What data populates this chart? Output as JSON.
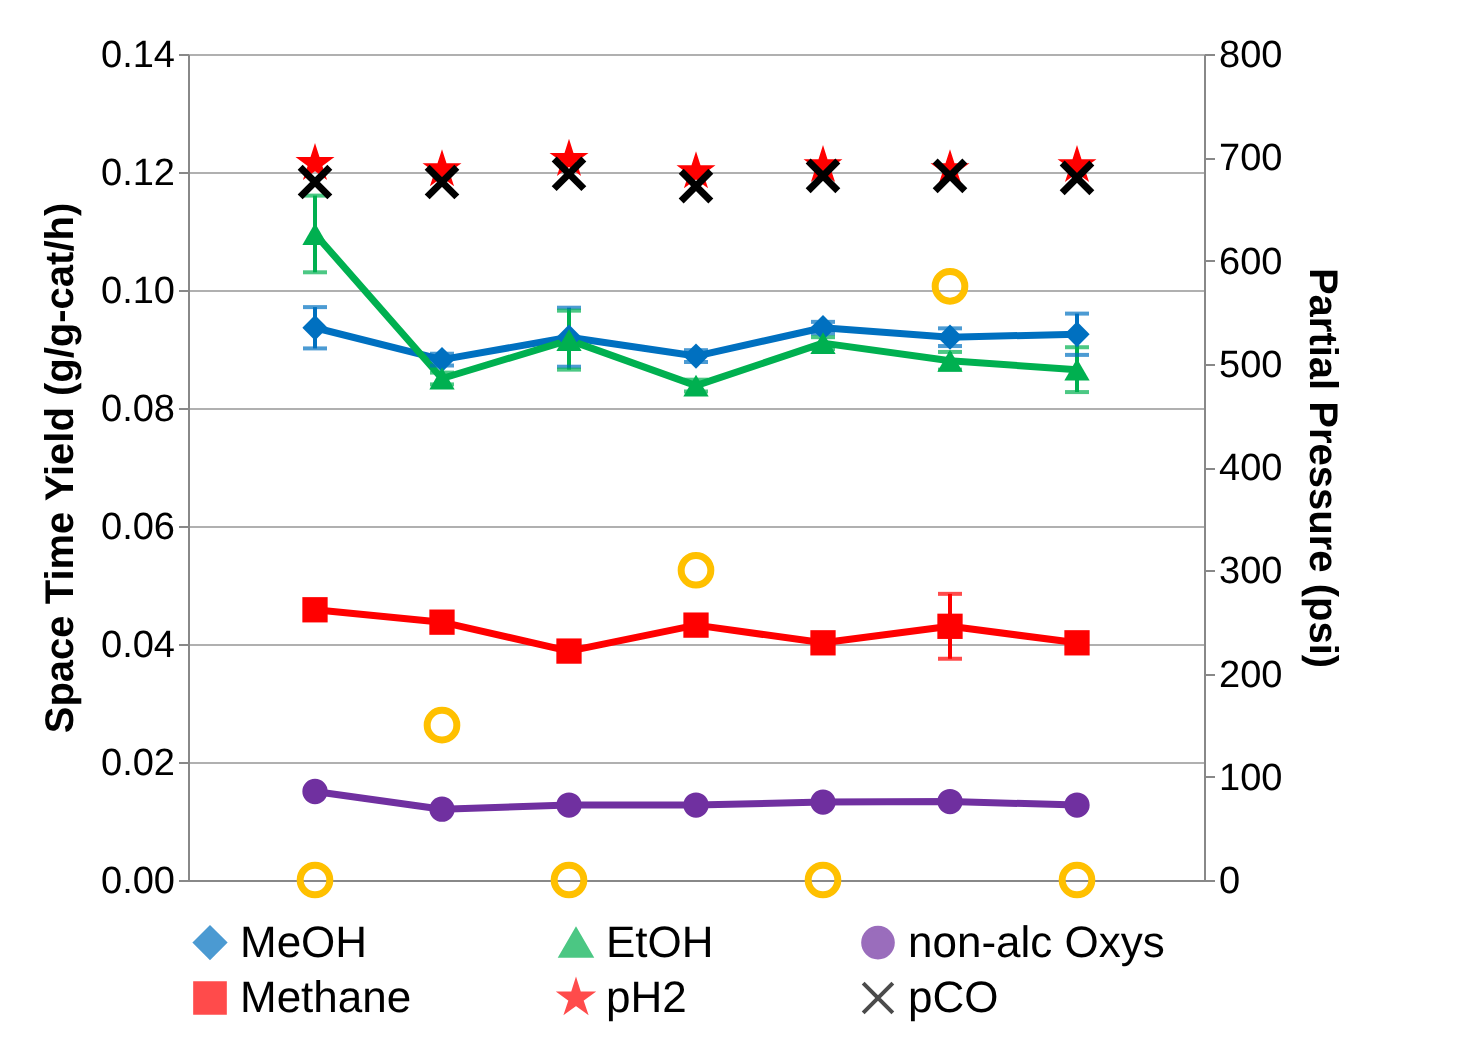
{
  "chart_data": {
    "type": "line",
    "ylabel": "Space Time Yield (g/g-cat/h)",
    "y2label": "Partial Pressure (psi)",
    "categories": [
      null,
      null,
      null,
      null,
      null,
      null,
      null
    ],
    "ylim": [
      0,
      0.14
    ],
    "yticks": [
      {
        "value": 0,
        "label": "0.00"
      },
      {
        "value": 0.02,
        "label": "0.02"
      },
      {
        "value": 0.04,
        "label": "0.04"
      },
      {
        "value": 0.06,
        "label": "0.06"
      },
      {
        "value": 0.08,
        "label": "0.08"
      },
      {
        "value": 0.1,
        "label": "0.10"
      },
      {
        "value": 0.12,
        "label": "0.12"
      },
      {
        "value": 0.14,
        "label": "0.14"
      }
    ],
    "y2lim": [
      0,
      800
    ],
    "y2ticks": [
      0,
      100,
      200,
      300,
      400,
      500,
      600,
      700,
      800
    ],
    "grid": "y",
    "legend": "bottom",
    "line_style": "solid",
    "series": [
      {
        "name": "MeOH",
        "type": "line",
        "marker": "diamond",
        "color": "#0070c0",
        "values": [
          0.0936,
          0.0882,
          0.092,
          0.0888,
          0.0936,
          0.092,
          0.0925
        ],
        "errors": [
          0.0035,
          0.001,
          0.005,
          0.001,
          0.001,
          0.0015,
          0.0035
        ]
      },
      {
        "name": "EtOH",
        "type": "line",
        "marker": "triangle",
        "color": "#00b050",
        "values": [
          0.1095,
          0.085,
          0.0915,
          0.0838,
          0.091,
          0.088,
          0.0865
        ],
        "errors": [
          0.0065,
          0.001,
          0.005,
          0.001,
          0.001,
          0.0015,
          0.0038
        ]
      },
      {
        "name": "non-alc Oxys",
        "type": "line",
        "marker": "circle",
        "color": "#7030a0",
        "values": [
          0.015,
          0.012,
          0.0127,
          0.0127,
          0.0132,
          0.0133,
          0.0127
        ],
        "errors": [
          null,
          null,
          null,
          null,
          null,
          null,
          null
        ]
      },
      {
        "name": "Methane",
        "type": "line",
        "marker": "square",
        "color": "#ff0000",
        "values": [
          0.0458,
          0.0437,
          0.0388,
          0.0432,
          0.0402,
          0.043,
          0.0402
        ],
        "errors": [
          0.0015,
          null,
          null,
          null,
          null,
          0.0055,
          null
        ]
      },
      {
        "name": "pH2",
        "type": "scatter",
        "marker": "star",
        "axis": "y2",
        "color": "#ff0000",
        "values": [
          694,
          688,
          698,
          686,
          692,
          688,
          692
        ]
      },
      {
        "name": "pCO",
        "type": "scatter",
        "marker": "cross",
        "axis": "y2",
        "color": "#000000",
        "values": [
          676,
          676,
          684,
          672,
          682,
          682,
          680
        ]
      },
      {
        "type": "scatter",
        "marker": "circle",
        "axis": "y2",
        "color": "#ffc000",
        "values": [
          0,
          150,
          0,
          300,
          0,
          575,
          0
        ]
      }
    ]
  }
}
